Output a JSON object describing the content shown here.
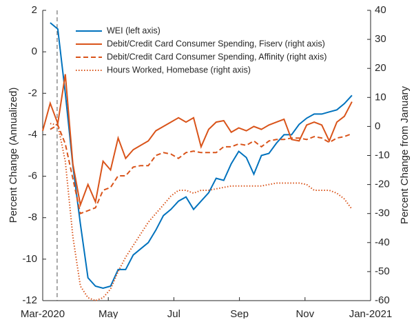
{
  "chart_data": {
    "type": "line",
    "x": [
      0,
      0.23,
      0.46,
      0.69,
      0.92,
      1.15,
      1.38,
      1.61,
      1.84,
      2.07,
      2.3,
      2.53,
      2.76,
      2.99,
      3.22,
      3.45,
      3.68,
      3.91,
      4.14,
      4.37,
      4.6,
      4.83,
      5.06,
      5.29,
      5.52,
      5.75,
      5.98,
      6.21,
      6.44,
      6.67,
      6.9,
      7.13,
      7.36,
      7.59,
      7.82,
      8.05,
      8.28,
      8.51,
      8.74,
      8.97,
      9.2,
      9.43
    ],
    "xlim": [
      0,
      10
    ],
    "xticks": [
      {
        "value": 0,
        "label": "Mar-2020"
      },
      {
        "value": 2,
        "label": "May"
      },
      {
        "value": 4,
        "label": "Jul"
      },
      {
        "value": 6,
        "label": "Sep"
      },
      {
        "value": 8,
        "label": "Nov"
      },
      {
        "value": 10,
        "label": "Jan-2021"
      }
    ],
    "ylabel": "Percent Change (Annualized)",
    "y2label": "Percent Change from January",
    "ylim": [
      -12,
      2
    ],
    "yticks": [
      -12,
      -10,
      -8,
      -6,
      -4,
      -2,
      0,
      2
    ],
    "y2lim": [
      -60,
      40
    ],
    "y2ticks": [
      -60,
      -50,
      -40,
      -30,
      -20,
      -10,
      0,
      10,
      20,
      30,
      40
    ],
    "vlines": [
      0.44
    ],
    "legend": "top-left",
    "series": [
      {
        "name": "WEI (left axis)",
        "color": "#0072bd",
        "style": "solid",
        "values": [
          null,
          1.4,
          1.1,
          -2,
          -5.5,
          -8.3,
          -10.9,
          -11.3,
          -11.4,
          -11.3,
          -10.5,
          -10.5,
          -9.8,
          -9.5,
          -9.2,
          -8.6,
          -7.9,
          -7.6,
          -7.2,
          -7.0,
          -7.6,
          -7.2,
          -6.8,
          -6.1,
          -6.2,
          -5.4,
          -4.8,
          -5.1,
          -5.9,
          -5.0,
          -4.9,
          -4.4,
          -4.0,
          -4.0,
          -3.5,
          -3.2,
          -3.0,
          -3.0,
          -2.9,
          -2.8,
          -2.5,
          -2.1
        ]
      },
      {
        "name": "Debit/Credit Card Consumer Spending, Fiserv (right axis)",
        "color": "#d95319",
        "style": "solid",
        "axis": "y2",
        "values": [
          -1.5,
          8,
          1,
          18,
          -13,
          -27,
          -20,
          -26,
          -12,
          -15,
          -4,
          -11,
          -8,
          -6.5,
          -5,
          -1.5,
          0,
          1.5,
          3,
          1.5,
          3,
          -7,
          -1,
          1.5,
          2,
          -2,
          -0.5,
          -1.5,
          0,
          -1,
          0.5,
          1.5,
          2.5,
          -4.5,
          -5,
          0.5,
          1.5,
          0.5,
          -5,
          1.5,
          3.5,
          8.5
        ]
      },
      {
        "name": "Debit/Credit Card Consumer Spending, Affinity (right axis)",
        "color": "#d95319",
        "style": "dashed",
        "axis": "y2",
        "values": [
          null,
          -1,
          0.5,
          -6,
          -18,
          -30,
          -29,
          -28,
          -22,
          -21,
          -17,
          -17,
          -14,
          -13.5,
          -13.5,
          -10,
          -9,
          -9.5,
          -11,
          -9,
          -8.5,
          -9,
          -9,
          -9,
          -7,
          -7,
          -6,
          -6.5,
          -5,
          -7,
          -5,
          -4.5,
          -4.5,
          -4,
          -4,
          -4.5,
          -3.5,
          -4,
          -5.5,
          -4,
          -3.5,
          -2.5
        ]
      },
      {
        "name": "Hours Worked, Homebase (right axis)",
        "color": "#d95319",
        "style": "dotted",
        "axis": "y2",
        "values": [
          null,
          1,
          0.5,
          -12,
          -38,
          -55,
          -59,
          -60,
          -59,
          -56,
          -50,
          -45,
          -41,
          -37,
          -33,
          -30,
          -27,
          -24,
          -22,
          -22,
          -23,
          -22,
          -22,
          -21.5,
          -21,
          -20.5,
          -20.5,
          -20.5,
          -20.5,
          -20.5,
          -20,
          -19.5,
          -19.5,
          -19.5,
          -19.5,
          -20,
          -22,
          -22,
          -22,
          -23,
          -25,
          -28.5
        ]
      }
    ]
  }
}
